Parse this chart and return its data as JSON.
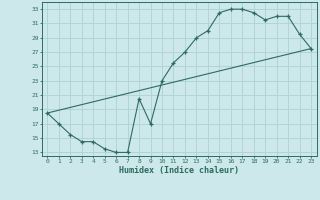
{
  "xlabel": "Humidex (Indice chaleur)",
  "bg_color": "#cce8eb",
  "grid_color": "#b0d4d8",
  "line_color": "#2e6b5e",
  "xlim": [
    -0.5,
    23.5
  ],
  "ylim": [
    12.5,
    34
  ],
  "xticks": [
    0,
    1,
    2,
    3,
    4,
    5,
    6,
    7,
    8,
    9,
    10,
    11,
    12,
    13,
    14,
    15,
    16,
    17,
    18,
    19,
    20,
    21,
    22,
    23
  ],
  "yticks": [
    13,
    15,
    17,
    19,
    21,
    23,
    25,
    27,
    29,
    31,
    33
  ],
  "curve1_x": [
    0,
    1,
    2,
    3,
    4,
    5,
    6,
    7,
    8,
    9,
    10,
    11,
    12,
    13,
    14,
    15,
    16,
    17,
    18,
    19,
    20,
    21,
    22,
    23
  ],
  "curve1_y": [
    18.5,
    17,
    15.5,
    14.5,
    14.5,
    13.5,
    13,
    13,
    20.5,
    17,
    23,
    25.5,
    27,
    29,
    30,
    32.5,
    33,
    33,
    32.5,
    31.5,
    32,
    32,
    29.5,
    27.5
  ],
  "curve2_x": [
    0,
    23
  ],
  "curve2_y": [
    18.5,
    27.5
  ]
}
